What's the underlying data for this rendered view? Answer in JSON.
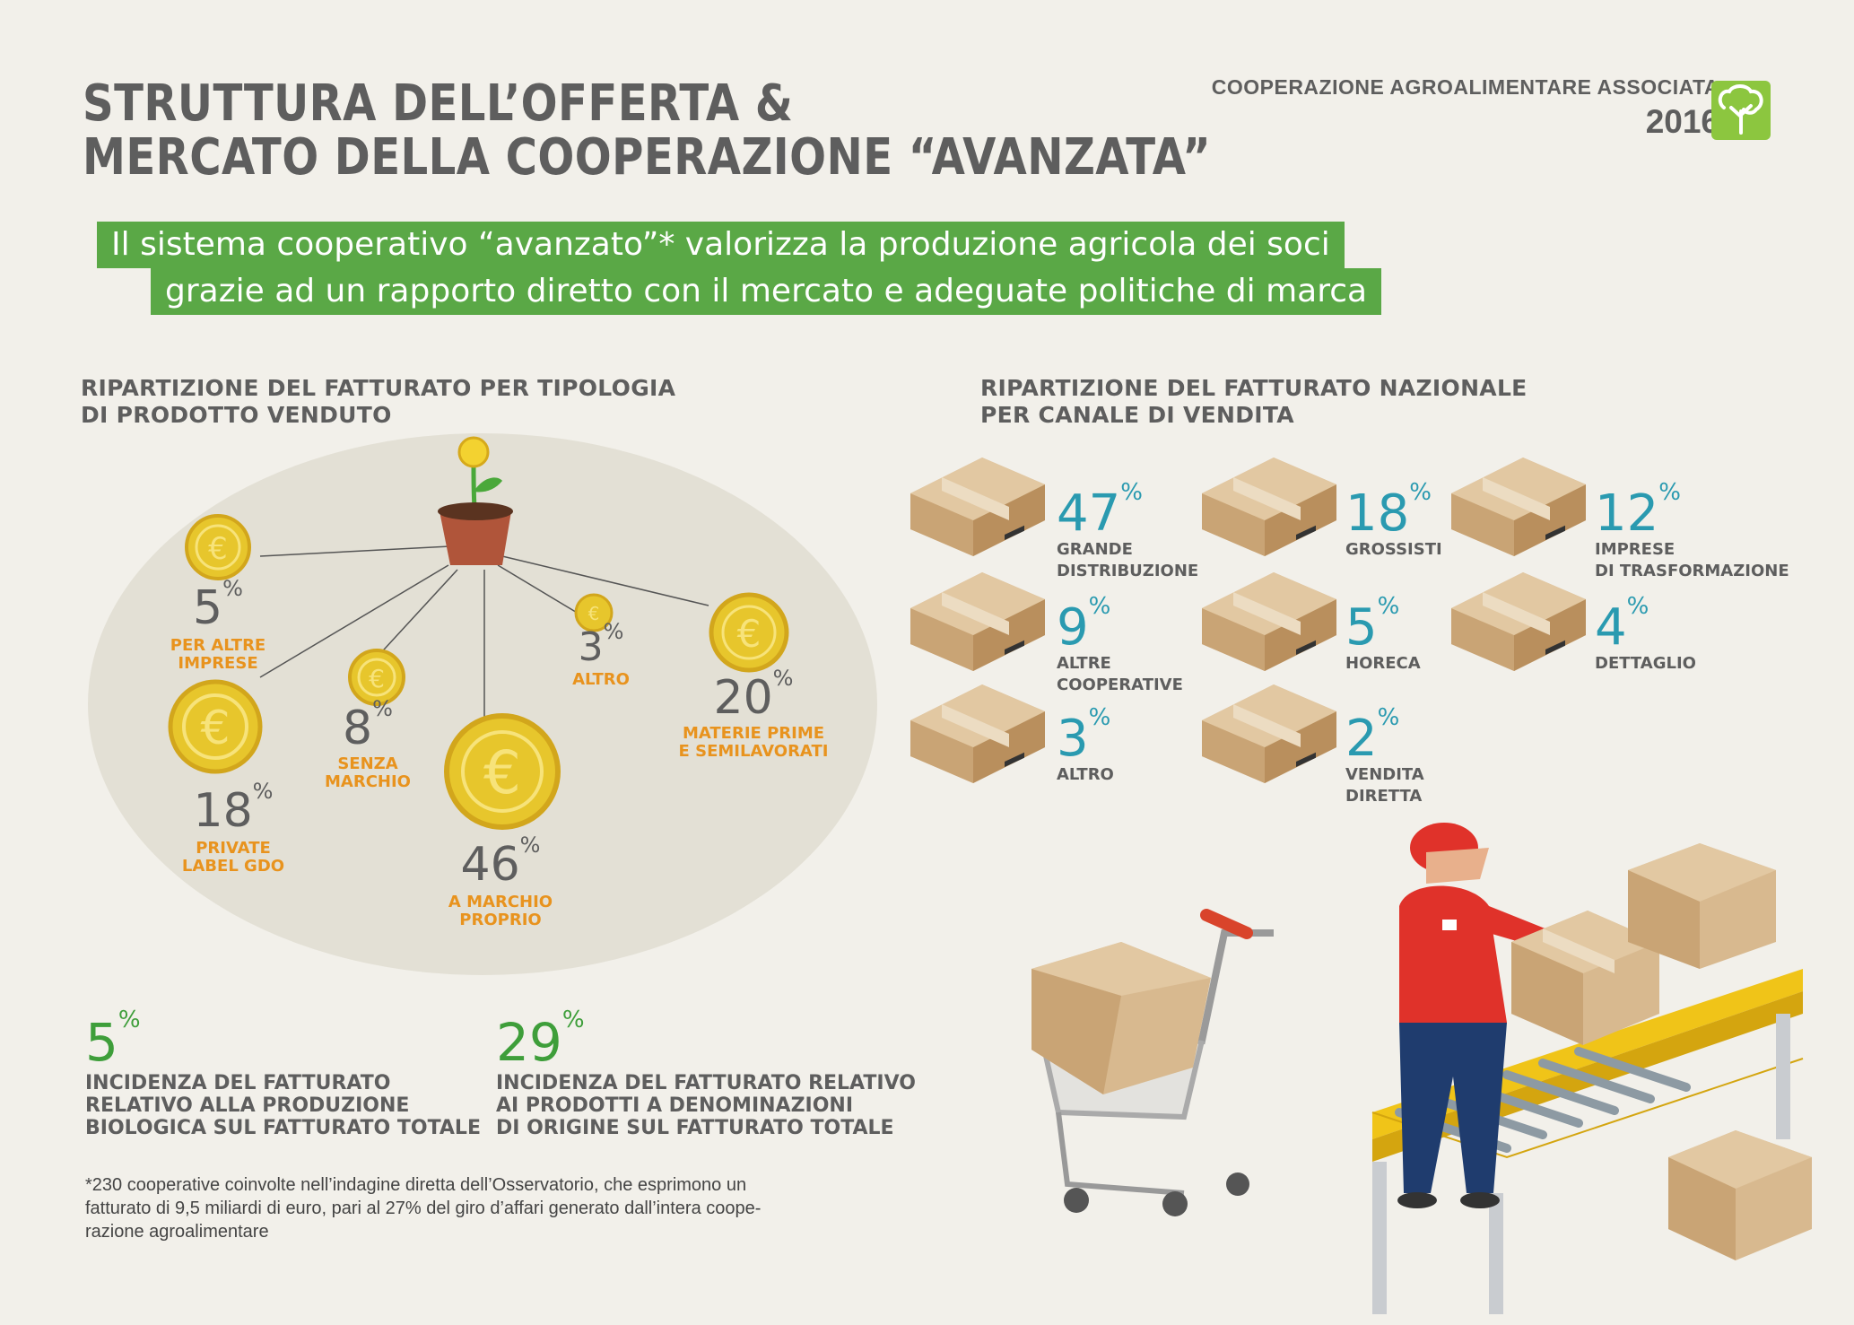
{
  "header": {
    "title_line1": "STRUTTURA DELL’OFFERTA &",
    "title_line2": "MERCATO DELLA COOPERAZIONE “AVANZATA”",
    "org": "COOPERAZIONE AGROALIMENTARE ASSOCIATA",
    "year": "2016"
  },
  "intro": {
    "line1": "Il sistema cooperativo “avanzato”* valorizza la produzione agricola dei soci",
    "line2": "grazie ad un rapporto diretto con il mercato e adeguate politiche di marca"
  },
  "product_section": {
    "title_line1": "RIPARTIZIONE DEL FATTURATO PER TIPOLOGIA",
    "title_line2": "DI PRODOTTO VENDUTO",
    "items": [
      {
        "value": "5",
        "label1": "PER ALTRE",
        "label2": "IMPRESE"
      },
      {
        "value": "8",
        "label1": "SENZA",
        "label2": "MARCHIO"
      },
      {
        "value": "3",
        "label1": "ALTRO",
        "label2": ""
      },
      {
        "value": "20",
        "label1": "MATERIE PRIME",
        "label2": "E SEMILAVORATI"
      },
      {
        "value": "18",
        "label1": "PRIVATE",
        "label2": "LABEL GDO"
      },
      {
        "value": "46",
        "label1": "A MARCHIO",
        "label2": "PROPRIO"
      }
    ]
  },
  "channel_section": {
    "title_line1": "RIPARTIZIONE DEL FATTURATO NAZIONALE",
    "title_line2": "PER CANALE DI VENDITA",
    "items": [
      {
        "value": "47",
        "label1": "GRANDE",
        "label2": "DISTRIBUZIONE"
      },
      {
        "value": "18",
        "label1": "GROSSISTI",
        "label2": ""
      },
      {
        "value": "12",
        "label1": "IMPRESE",
        "label2": "DI TRASFORMAZIONE"
      },
      {
        "value": "9",
        "label1": "ALTRE",
        "label2": "COOPERATIVE"
      },
      {
        "value": "5",
        "label1": "HORECA",
        "label2": ""
      },
      {
        "value": "4",
        "label1": "DETTAGLIO",
        "label2": ""
      },
      {
        "value": "3",
        "label1": "ALTRO",
        "label2": ""
      },
      {
        "value": "2",
        "label1": "VENDITA",
        "label2": "DIRETTA"
      }
    ]
  },
  "percent_sign": "%",
  "stats": [
    {
      "value": "5",
      "line1": "INCIDENZA DEL FATTURATO",
      "line2": "RELATIVO ALLA PRODUZIONE",
      "line3": "BIOLOGICA SUL FATTURATO TOTALE"
    },
    {
      "value": "29",
      "line1": "INCIDENZA DEL FATTURATO RELATIVO",
      "line2": "AI PRODOTTI A DENOMINAZIONI",
      "line3": "DI ORIGINE SUL FATTURATO TOTALE"
    }
  ],
  "footnote": {
    "line1": "*230 cooperative coinvolte nell’indagine diretta dell’Osservatorio, che esprimono un",
    "line2": "fatturato di 9,5 miliardi di euro, pari al 27% del giro d’affari generato dall’intera coope-",
    "line3": "razione agroalimentare"
  },
  "colors": {
    "band_green": "#5aa846",
    "stat_green": "#3e9e3a",
    "channel_teal": "#2a9ab0",
    "label_orange": "#e8931e",
    "logo_green": "#8cc63f"
  },
  "icons": [
    "euro-coin-icon",
    "plant-pot-icon",
    "cardboard-box-icon",
    "shopping-cart-icon",
    "worker-icon",
    "conveyor-belt-icon",
    "tree-logo-icon"
  ]
}
